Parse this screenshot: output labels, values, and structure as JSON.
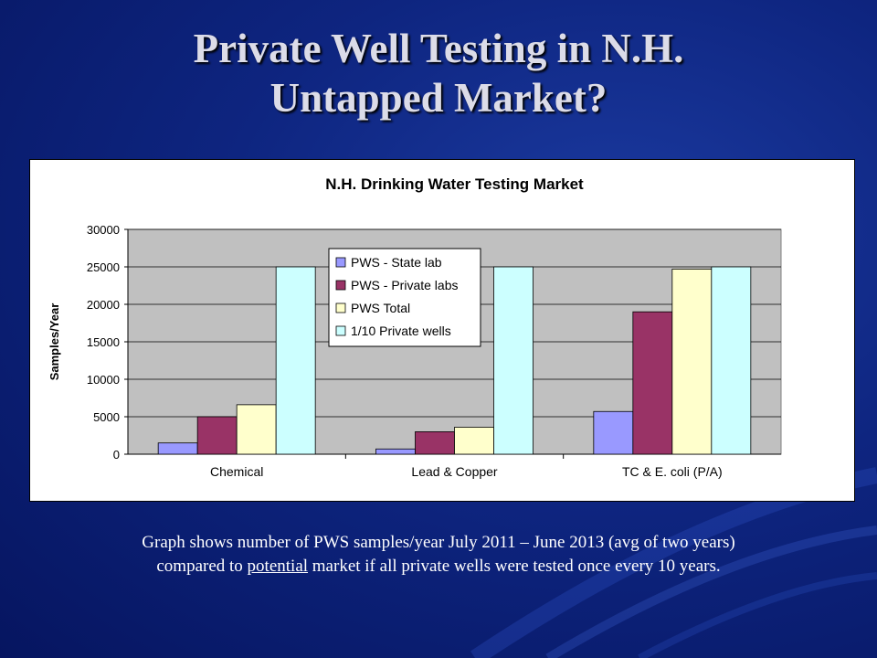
{
  "slide": {
    "title_line1": "Private Well Testing in N.H.",
    "title_line2": "Untapped Market?",
    "caption_line1": "Graph shows number of PWS samples/year July 2011 – June 2013 (avg of two years)",
    "caption_line2_pre": "compared to ",
    "caption_line2_underlined": "potential",
    "caption_line2_post": " market if all private wells were tested once every 10 years."
  },
  "chart_data": {
    "type": "bar",
    "title": "N.H. Drinking Water Testing Market",
    "xlabel": "",
    "ylabel": "Samples/Year",
    "ylim": [
      0,
      30000
    ],
    "yticks": [
      0,
      5000,
      10000,
      15000,
      20000,
      25000,
      30000
    ],
    "grid": true,
    "legend_position": "top-center",
    "categories": [
      "Chemical",
      "Lead & Copper",
      "TC & E. coli (P/A)"
    ],
    "series": [
      {
        "name": "PWS - State lab",
        "color": "#9999ff",
        "values": [
          1500,
          700,
          5700
        ]
      },
      {
        "name": "PWS - Private labs",
        "color": "#993366",
        "values": [
          5000,
          3000,
          19000
        ]
      },
      {
        "name": "PWS Total",
        "color": "#ffffcc",
        "values": [
          6600,
          3600,
          24700
        ]
      },
      {
        "name": "1/10 Private wells",
        "color": "#ccffff",
        "values": [
          25000,
          25000,
          25000
        ]
      }
    ]
  }
}
